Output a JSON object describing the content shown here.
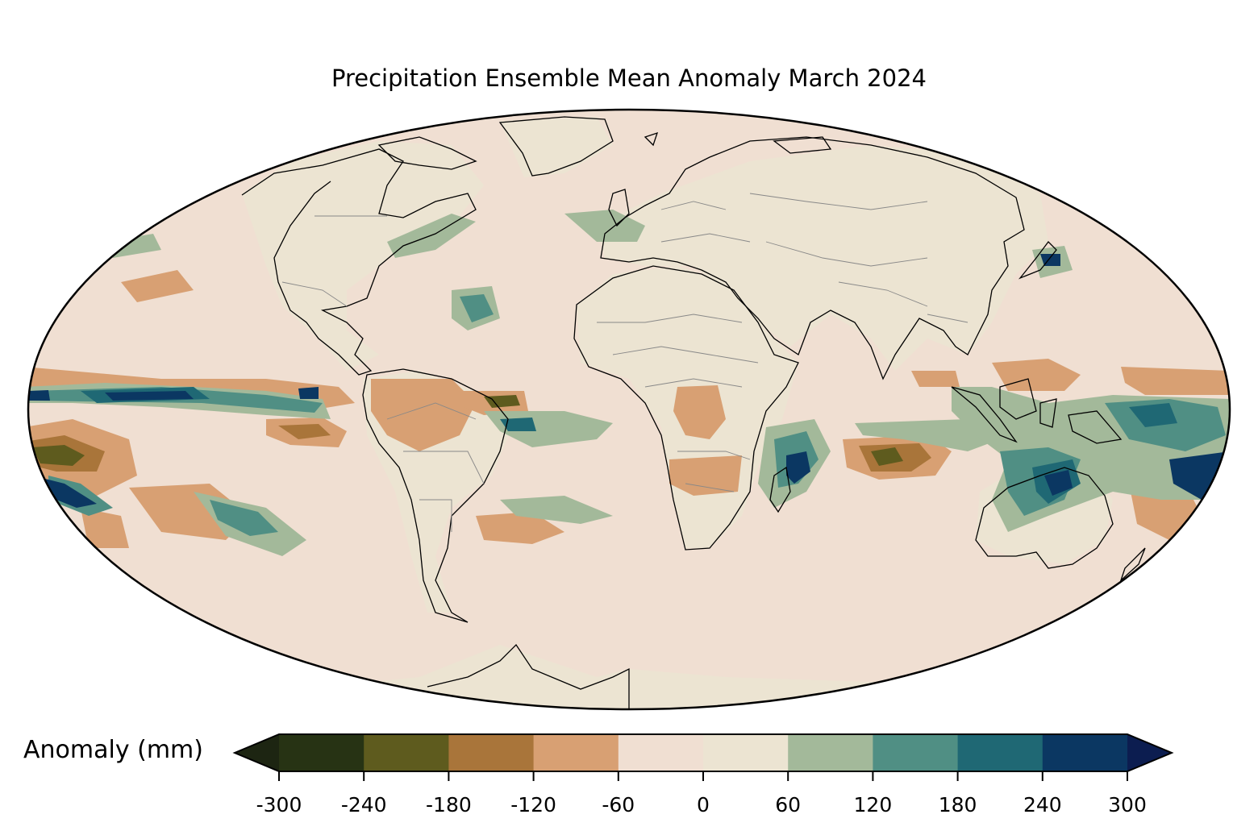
{
  "title": "Precipitation Ensemble Mean Anomaly March 2024",
  "map": {
    "projection": "Mollweide",
    "variable": "Precipitation ensemble mean anomaly",
    "period": "March 2024"
  },
  "colorbar": {
    "label": "Anomaly (mm)",
    "ticks": [
      "-300",
      "-240",
      "-180",
      "-120",
      "-60",
      "0",
      "60",
      "120",
      "180",
      "240",
      "300"
    ],
    "extend": "both",
    "colors": [
      "#273314",
      "#5e5b1e",
      "#a9753a",
      "#d8a073",
      "#f0dfd2",
      "#ece4d2",
      "#a3b99a",
      "#508f84",
      "#1f6874",
      "#0b3762"
    ],
    "under_color": "#1d2512",
    "over_color": "#0c1d50"
  },
  "palette": {
    "ocean_neutral": "#f0dfd2",
    "land_neutral": "#ece4d2"
  }
}
